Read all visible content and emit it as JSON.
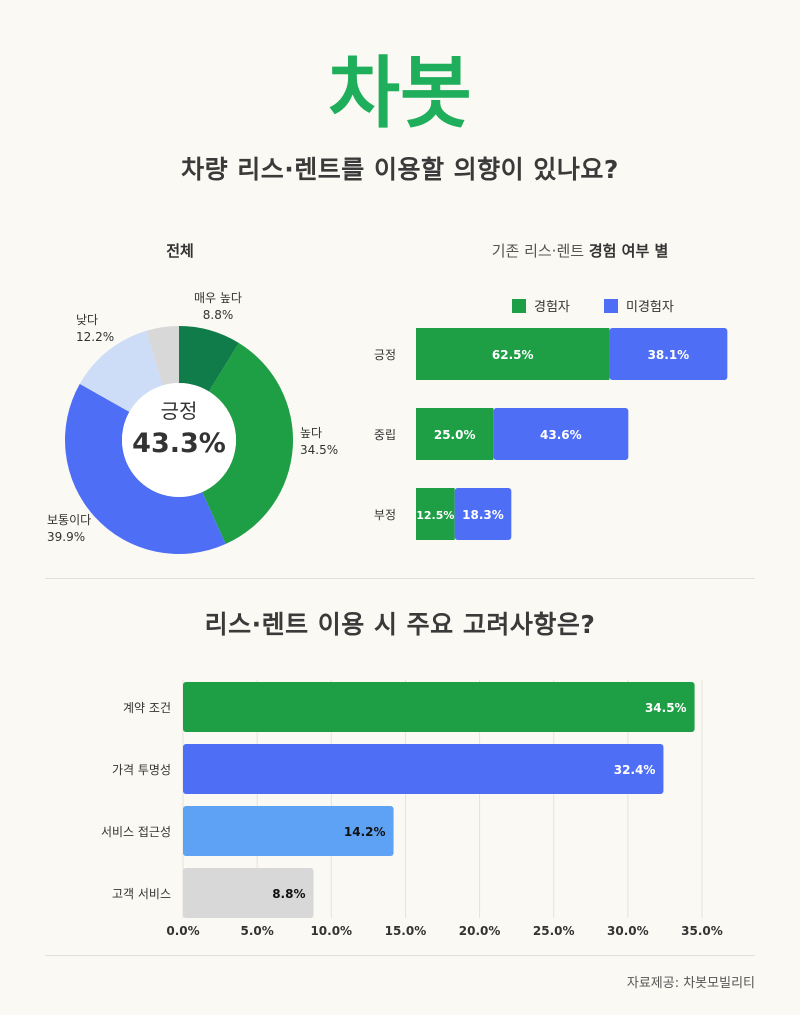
{
  "logo": {
    "text": "차봇",
    "color": "#1fae5b"
  },
  "title1": "차량 리스·렌트를 이용할 의향이 있나요?",
  "title2": "리스·렌트 이용 시 주요 고려사항은?",
  "source": "자료제공: 차봇모빌리티",
  "colors": {
    "dark_green": "#107c4a",
    "green": "#1e9e45",
    "blue": "#4e6ff5",
    "light_blue": "#cddcf7",
    "sky": "#5ea2f5",
    "gray": "#d8d8d8"
  },
  "chart_data": [
    {
      "type": "pie",
      "title": "전체",
      "center_label": "긍정",
      "center_value": "43.3%",
      "slices": [
        {
          "label": "매우 높다",
          "value": 8.8,
          "display": "8.8%",
          "color": "#107c4a"
        },
        {
          "label": "높다",
          "value": 34.5,
          "display": "34.5%",
          "color": "#1e9e45"
        },
        {
          "label": "보통이다",
          "value": 39.9,
          "display": "39.9%",
          "color": "#4e6ff5"
        },
        {
          "label": "낮다",
          "value": 12.2,
          "display": "12.2%",
          "color": "#cddcf7"
        },
        {
          "label": "",
          "value": 4.6,
          "display": "",
          "color": "#d8d8d8"
        }
      ]
    },
    {
      "type": "bar",
      "orientation": "horizontal",
      "stacked": true,
      "title_prefix": "기존 리스·렌트",
      "title_bold": "경험 여부 별",
      "categories": [
        "긍정",
        "중립",
        "부정"
      ],
      "series": [
        {
          "name": "경험자",
          "values": [
            62.5,
            25.0,
            12.5
          ],
          "labels": [
            "62.5%",
            "25.0%",
            "12.5%"
          ],
          "color": "#1e9e45"
        },
        {
          "name": "미경험자",
          "values": [
            38.1,
            43.6,
            18.3
          ],
          "labels": [
            "38.1%",
            "43.6%",
            "18.3%"
          ],
          "color": "#4e6ff5"
        }
      ],
      "legend": "top"
    },
    {
      "type": "bar",
      "orientation": "horizontal",
      "categories": [
        "계약 조건",
        "가격 투명성",
        "서비스 접근성",
        "고객 서비스"
      ],
      "values": [
        34.5,
        32.4,
        14.2,
        8.8
      ],
      "labels": [
        "34.5%",
        "32.4%",
        "14.2%",
        "8.8%"
      ],
      "colors": [
        "#1e9e45",
        "#4e6ff5",
        "#5ea2f5",
        "#d8d8d8"
      ],
      "label_colors": [
        "#ffffff",
        "#ffffff",
        "#111111",
        "#111111"
      ],
      "xticks": [
        "0.0%",
        "5.0%",
        "10.0%",
        "15.0%",
        "20.0%",
        "25.0%",
        "30.0%",
        "35.0%"
      ],
      "xlim": [
        0,
        35
      ],
      "grid": true
    }
  ]
}
